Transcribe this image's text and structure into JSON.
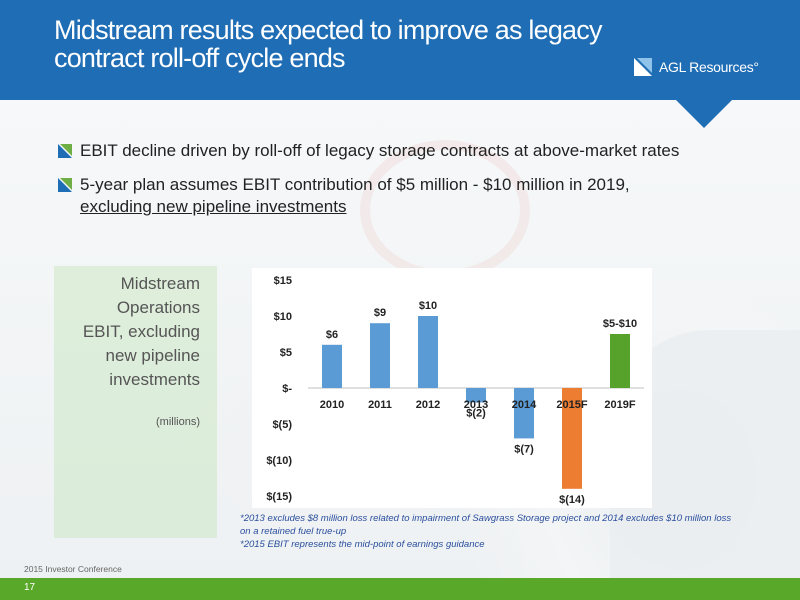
{
  "header": {
    "title_line1": "Midstream results expected to improve as legacy",
    "title_line2": "contract roll-off cycle ends",
    "logo_text": "AGL Resources°",
    "color": "#1f6db4"
  },
  "bullets": [
    {
      "text": "EBIT decline driven by roll-off of legacy storage contracts at above-market rates"
    },
    {
      "text": "5-year plan assumes EBIT contribution of $5 million - $10 million in 2019,",
      "underlined_text": "excluding new pipeline investments"
    }
  ],
  "side_panel": {
    "title_line1": "Midstream",
    "title_line2": "Operations",
    "title_line3": "EBIT, excluding",
    "title_line4": "new pipeline",
    "title_line5": "investments",
    "unit": "(millions)"
  },
  "chart_data": {
    "type": "bar",
    "categories": [
      "2010",
      "2011",
      "2012",
      "2013",
      "2014",
      "2015F",
      "2019F"
    ],
    "values": [
      6,
      9,
      10,
      -2,
      -7,
      -14,
      7.5
    ],
    "data_labels": [
      "$6",
      "$9",
      "$10",
      "$(2)",
      "$(7)",
      "$(14)",
      "$5-$10"
    ],
    "bar_colors": [
      "#5b9bd5",
      "#5b9bd5",
      "#5b9bd5",
      "#5b9bd5",
      "#5b9bd5",
      "#ed7d31",
      "#56a22a"
    ],
    "ylim": [
      -15,
      15
    ],
    "yticks": [
      15,
      10,
      5,
      0,
      -5,
      -10,
      -15
    ],
    "ytick_labels": [
      "$15",
      "$10",
      "$5",
      "$-",
      "$(5)",
      "$(10)",
      "$(15)"
    ],
    "grid": false,
    "title": "",
    "xlabel": "",
    "ylabel": ""
  },
  "footnotes": {
    "line1": "*2013 excludes $8 million loss related to impairment of Sawgrass Storage project and 2014 excludes $10 million loss",
    "line2": "on a retained fuel true-up",
    "line3": "*2015 EBIT represents the mid-point of earnings guidance"
  },
  "footer": {
    "conference": "2015 Investor Conference",
    "page_number": "17",
    "color": "#5aa82a"
  }
}
